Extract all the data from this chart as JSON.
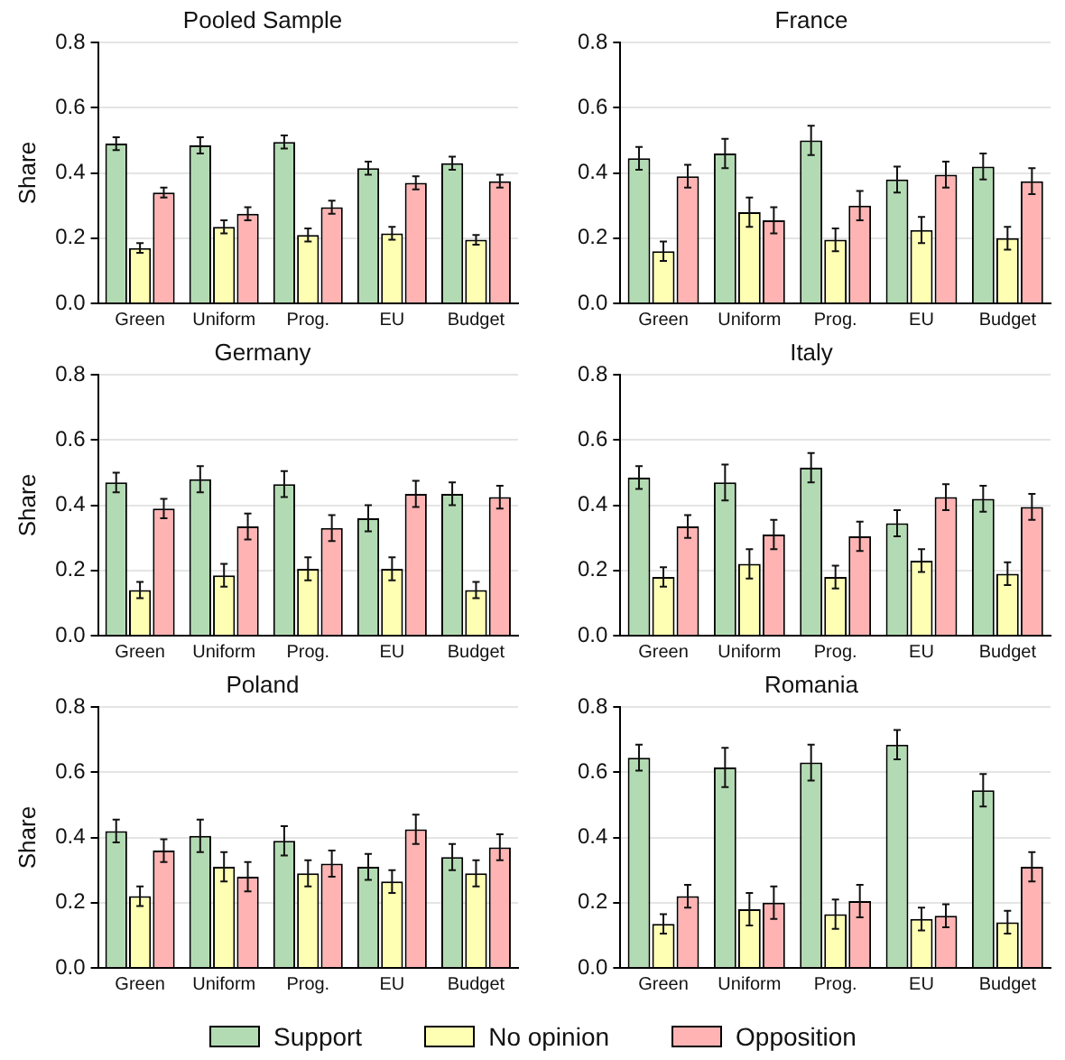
{
  "chart_data": [
    {
      "type": "bar",
      "title": "Pooled Sample",
      "ylabel": "Share",
      "categories": [
        "Green",
        "Uniform",
        "Prog.",
        "EU",
        "Budget"
      ],
      "ylim": [
        0,
        0.8
      ],
      "yticks": [
        {
          "value": 0,
          "label": "0.0"
        },
        {
          "value": 0.2,
          "label": "0.2"
        },
        {
          "value": 0.4,
          "label": "0.4"
        },
        {
          "value": 0.6,
          "label": "0.6"
        },
        {
          "value": 0.8,
          "label": "0.8"
        }
      ],
      "grid": "y",
      "legend": "bottom",
      "series": [
        {
          "name": "Support",
          "color": "#b3dbb3",
          "values": [
            0.49,
            0.485,
            0.495,
            0.415,
            0.43
          ],
          "errors": [
            0.02,
            0.025,
            0.02,
            0.02,
            0.02
          ]
        },
        {
          "name": "No opinion",
          "color": "#ffffb3",
          "values": [
            0.17,
            0.235,
            0.21,
            0.215,
            0.195
          ],
          "errors": [
            0.015,
            0.02,
            0.02,
            0.02,
            0.015
          ]
        },
        {
          "name": "Opposition",
          "color": "#ffb3b3",
          "values": [
            0.34,
            0.275,
            0.295,
            0.37,
            0.375
          ],
          "errors": [
            0.015,
            0.02,
            0.02,
            0.02,
            0.02
          ]
        }
      ]
    },
    {
      "type": "bar",
      "title": "France",
      "categories": [
        "Green",
        "Uniform",
        "Prog.",
        "EU",
        "Budget"
      ],
      "ylim": [
        0,
        0.8
      ],
      "yticks": [
        {
          "value": 0,
          "label": "0.0"
        },
        {
          "value": 0.2,
          "label": "0.2"
        },
        {
          "value": 0.4,
          "label": "0.4"
        },
        {
          "value": 0.6,
          "label": "0.6"
        },
        {
          "value": 0.8,
          "label": "0.8"
        }
      ],
      "grid": "y",
      "series": [
        {
          "color": "#b3dbb3",
          "values": [
            0.445,
            0.46,
            0.5,
            0.38,
            0.42
          ],
          "errors": [
            0.035,
            0.045,
            0.045,
            0.04,
            0.04
          ]
        },
        {
          "color": "#ffffb3",
          "values": [
            0.16,
            0.28,
            0.195,
            0.225,
            0.2
          ],
          "errors": [
            0.03,
            0.045,
            0.035,
            0.04,
            0.035
          ]
        },
        {
          "color": "#ffb3b3",
          "values": [
            0.39,
            0.255,
            0.3,
            0.395,
            0.375
          ],
          "errors": [
            0.035,
            0.04,
            0.045,
            0.04,
            0.04
          ]
        }
      ]
    },
    {
      "type": "bar",
      "title": "Germany",
      "ylabel": "Share",
      "categories": [
        "Green",
        "Uniform",
        "Prog.",
        "EU",
        "Budget"
      ],
      "ylim": [
        0,
        0.8
      ],
      "yticks": [
        {
          "value": 0,
          "label": "0.0"
        },
        {
          "value": 0.2,
          "label": "0.2"
        },
        {
          "value": 0.4,
          "label": "0.4"
        },
        {
          "value": 0.6,
          "label": "0.6"
        },
        {
          "value": 0.8,
          "label": "0.8"
        }
      ],
      "grid": "y",
      "series": [
        {
          "color": "#b3dbb3",
          "values": [
            0.47,
            0.48,
            0.465,
            0.36,
            0.435
          ],
          "errors": [
            0.03,
            0.04,
            0.04,
            0.04,
            0.035
          ]
        },
        {
          "color": "#ffffb3",
          "values": [
            0.14,
            0.185,
            0.205,
            0.205,
            0.14
          ],
          "errors": [
            0.025,
            0.035,
            0.035,
            0.035,
            0.025
          ]
        },
        {
          "color": "#ffb3b3",
          "values": [
            0.39,
            0.335,
            0.33,
            0.435,
            0.425
          ],
          "errors": [
            0.03,
            0.04,
            0.04,
            0.04,
            0.035
          ]
        }
      ]
    },
    {
      "type": "bar",
      "title": "Italy",
      "categories": [
        "Green",
        "Uniform",
        "Prog.",
        "EU",
        "Budget"
      ],
      "ylim": [
        0,
        0.8
      ],
      "yticks": [
        {
          "value": 0,
          "label": "0.0"
        },
        {
          "value": 0.2,
          "label": "0.2"
        },
        {
          "value": 0.4,
          "label": "0.4"
        },
        {
          "value": 0.6,
          "label": "0.6"
        },
        {
          "value": 0.8,
          "label": "0.8"
        }
      ],
      "grid": "y",
      "series": [
        {
          "color": "#b3dbb3",
          "values": [
            0.485,
            0.47,
            0.515,
            0.345,
            0.42
          ],
          "errors": [
            0.035,
            0.055,
            0.045,
            0.04,
            0.04
          ]
        },
        {
          "color": "#ffffb3",
          "values": [
            0.18,
            0.22,
            0.18,
            0.23,
            0.19
          ],
          "errors": [
            0.03,
            0.045,
            0.035,
            0.035,
            0.035
          ]
        },
        {
          "color": "#ffb3b3",
          "values": [
            0.335,
            0.31,
            0.305,
            0.425,
            0.395
          ],
          "errors": [
            0.035,
            0.045,
            0.045,
            0.04,
            0.04
          ]
        }
      ]
    },
    {
      "type": "bar",
      "title": "Poland",
      "ylabel": "Share",
      "categories": [
        "Green",
        "Uniform",
        "Prog.",
        "EU",
        "Budget"
      ],
      "ylim": [
        0,
        0.8
      ],
      "yticks": [
        {
          "value": 0,
          "label": "0.0"
        },
        {
          "value": 0.2,
          "label": "0.2"
        },
        {
          "value": 0.4,
          "label": "0.4"
        },
        {
          "value": 0.6,
          "label": "0.6"
        },
        {
          "value": 0.8,
          "label": "0.8"
        }
      ],
      "grid": "y",
      "series": [
        {
          "color": "#b3dbb3",
          "values": [
            0.42,
            0.405,
            0.39,
            0.31,
            0.34
          ],
          "errors": [
            0.035,
            0.05,
            0.045,
            0.04,
            0.04
          ]
        },
        {
          "color": "#ffffb3",
          "values": [
            0.22,
            0.31,
            0.29,
            0.265,
            0.29
          ],
          "errors": [
            0.03,
            0.045,
            0.04,
            0.035,
            0.04
          ]
        },
        {
          "color": "#ffb3b3",
          "values": [
            0.36,
            0.28,
            0.32,
            0.425,
            0.37
          ],
          "errors": [
            0.035,
            0.045,
            0.04,
            0.045,
            0.04
          ]
        }
      ]
    },
    {
      "type": "bar",
      "title": "Romania",
      "categories": [
        "Green",
        "Uniform",
        "Prog.",
        "EU",
        "Budget"
      ],
      "ylim": [
        0,
        0.8
      ],
      "yticks": [
        {
          "value": 0,
          "label": "0.0"
        },
        {
          "value": 0.2,
          "label": "0.2"
        },
        {
          "value": 0.4,
          "label": "0.4"
        },
        {
          "value": 0.6,
          "label": "0.6"
        },
        {
          "value": 0.8,
          "label": "0.8"
        }
      ],
      "grid": "y",
      "series": [
        {
          "color": "#b3dbb3",
          "values": [
            0.645,
            0.615,
            0.63,
            0.685,
            0.545
          ],
          "errors": [
            0.04,
            0.06,
            0.055,
            0.045,
            0.05
          ]
        },
        {
          "color": "#ffffb3",
          "values": [
            0.135,
            0.18,
            0.165,
            0.15,
            0.14
          ],
          "errors": [
            0.03,
            0.05,
            0.045,
            0.035,
            0.035
          ]
        },
        {
          "color": "#ffb3b3",
          "values": [
            0.22,
            0.2,
            0.205,
            0.16,
            0.31
          ],
          "errors": [
            0.035,
            0.05,
            0.05,
            0.035,
            0.045
          ]
        }
      ]
    }
  ]
}
